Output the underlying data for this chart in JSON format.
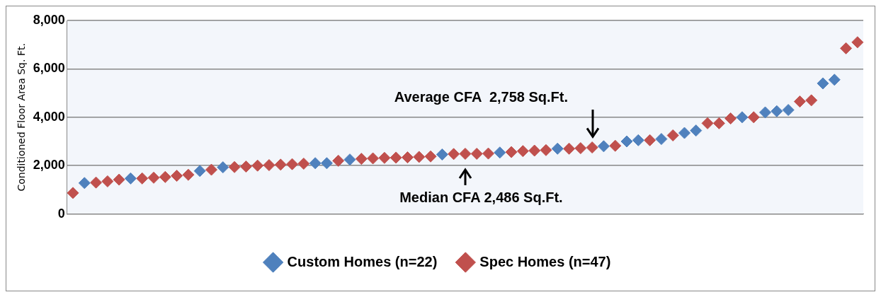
{
  "chart_data": {
    "type": "scatter",
    "ylabel": "Conditioned Floor Area Sq. Ft.",
    "categories": [
      null,
      null,
      null,
      null,
      null,
      null,
      null,
      null,
      null,
      null,
      null,
      null,
      null,
      null,
      null,
      null,
      null,
      null,
      null,
      null,
      null,
      null,
      null,
      null,
      null,
      null,
      null,
      null,
      null,
      null,
      null,
      null,
      null,
      null,
      null,
      null,
      null,
      null,
      null,
      null,
      null,
      null,
      null,
      null,
      null,
      null,
      null,
      null,
      null,
      null,
      null,
      null,
      null,
      null,
      null,
      null,
      null,
      null,
      null,
      null,
      null,
      null,
      null,
      null,
      null,
      null,
      null,
      null,
      null
    ],
    "series": [
      {
        "name": "Custom Homes (n=22)",
        "color": "#4f81bd",
        "values": [
          null,
          1280,
          null,
          null,
          null,
          1470,
          null,
          null,
          null,
          null,
          null,
          1780,
          null,
          1930,
          null,
          null,
          null,
          null,
          null,
          null,
          null,
          2100,
          2100,
          null,
          2250,
          null,
          null,
          null,
          null,
          null,
          null,
          null,
          2460,
          null,
          null,
          null,
          null,
          2540,
          null,
          null,
          null,
          null,
          2700,
          null,
          null,
          null,
          2800,
          null,
          3000,
          3050,
          null,
          3100,
          null,
          3350,
          3450,
          null,
          null,
          null,
          4000,
          null,
          4200,
          4250,
          4300,
          null,
          null,
          5400,
          5550,
          null,
          null
        ]
      },
      {
        "name": "Spec Homes (n=47)",
        "color": "#c0504d",
        "values": [
          870,
          null,
          1300,
          1350,
          1420,
          null,
          1470,
          1500,
          1530,
          1580,
          1620,
          null,
          1830,
          null,
          1940,
          1960,
          2000,
          2020,
          2040,
          2060,
          2080,
          null,
          null,
          2200,
          null,
          2280,
          2300,
          2320,
          2330,
          2340,
          2360,
          2380,
          null,
          2480,
          2490,
          2490,
          2500,
          null,
          2560,
          2600,
          2620,
          2640,
          null,
          2700,
          2720,
          2750,
          null,
          2820,
          null,
          null,
          3050,
          null,
          3250,
          null,
          null,
          3750,
          3750,
          3950,
          null,
          4000,
          null,
          null,
          null,
          4650,
          4700,
          null,
          null,
          6850,
          7100
        ]
      }
    ],
    "ylim": [
      0,
      8000
    ],
    "yticks": [
      {
        "value": 0,
        "label": "0"
      },
      {
        "value": 2000,
        "label": "2,000"
      },
      {
        "value": 4000,
        "label": "4,000"
      },
      {
        "value": 6000,
        "label": "6,000"
      },
      {
        "value": 8000,
        "label": "8,000"
      }
    ],
    "grid": "y",
    "legend": "bottom",
    "marker": "diamond",
    "annotations": [
      "Average CFA  2,758 Sq.Ft.",
      "Median CFA 2,486 Sq.Ft."
    ]
  }
}
